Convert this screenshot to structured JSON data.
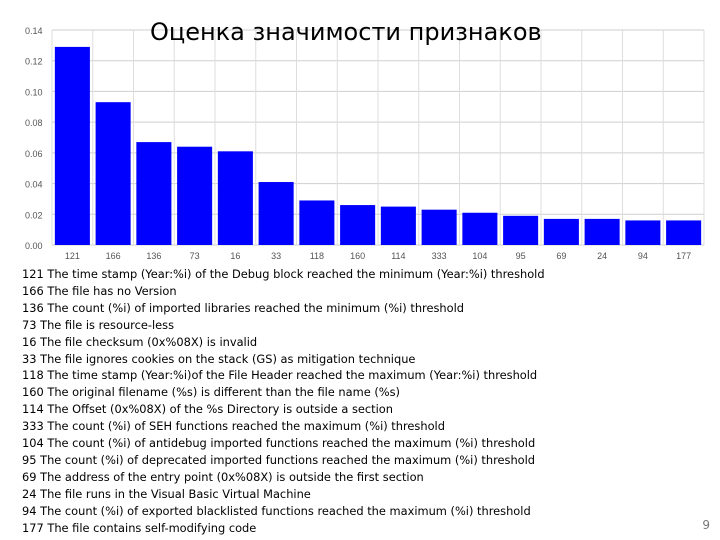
{
  "chart_data": {
    "type": "bar",
    "title": "Оценка значимости признаков",
    "xlabel": "",
    "ylabel": "",
    "ylim": [
      0,
      0.14
    ],
    "yticks": [
      "0.00",
      "0.02",
      "0.04",
      "0.06",
      "0.08",
      "0.10",
      "0.12",
      "0.14"
    ],
    "grid": true,
    "categories": [
      "121",
      "166",
      "136",
      "73",
      "16",
      "33",
      "118",
      "160",
      "114",
      "333",
      "104",
      "95",
      "69",
      "24",
      "94",
      "177"
    ],
    "values": [
      0.129,
      0.093,
      0.067,
      0.064,
      0.061,
      0.041,
      0.029,
      0.026,
      0.025,
      0.023,
      0.021,
      0.019,
      0.017,
      0.017,
      0.016,
      0.016
    ],
    "bar_color": "#0000ff"
  },
  "legend": [
    "121 The time stamp (Year:%i) of the Debug block reached the minimum (Year:%i) threshold",
    "166 The file has no Version",
    "136 The count (%i) of imported libraries reached the minimum (%i) threshold",
    "73 The file is resource-less",
    "16 The file checksum (0x%08X) is invalid",
    "33 The file ignores cookies on the stack (GS) as mitigation technique",
    "118 The time stamp (Year:%i)of the File Header reached the maximum (Year:%i) threshold",
    "160 The original filename (%s) is different than the file name (%s)",
    "114 The Offset (0x%08X) of the %s Directory is outside a section",
    "333 The count (%i) of SEH functions reached the maximum (%i) threshold",
    "104 The count (%i) of antidebug imported functions reached the maximum (%i) threshold",
    "95 The count (%i) of deprecated imported functions reached the maximum (%i) threshold",
    "69 The address of the entry point (0x%08X) is outside the first section",
    "24 The file runs in the Visual Basic Virtual Machine",
    "94 The count (%i) of exported blacklisted functions reached the maximum (%i) threshold",
    "177 The file contains self-modifying code"
  ],
  "page_number": "9"
}
